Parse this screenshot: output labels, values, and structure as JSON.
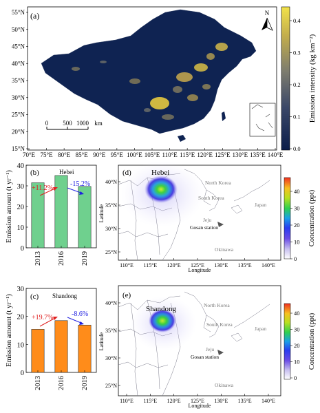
{
  "panel_a": {
    "label": "(a)",
    "lat_ticks": [
      "55°N",
      "50°N",
      "45°N",
      "40°N",
      "35°N",
      "30°N",
      "25°N",
      "20°N",
      "15°N"
    ],
    "lon_ticks": [
      "70°E",
      "75°E",
      "80°E",
      "85°E",
      "90°E",
      "95°E",
      "100°E",
      "105°E",
      "110°E",
      "115°E",
      "120°E",
      "125°E",
      "130°E",
      "135°E",
      "140°E"
    ],
    "scalebar": {
      "values": [
        "0",
        "500",
        "1000"
      ],
      "unit": "km"
    },
    "north_arrow": "N",
    "colorbar": {
      "label": "Emission intensity (kg km⁻²)",
      "ticks": [
        "0.0",
        "0.1",
        "0.2",
        "0.3",
        "0.4"
      ],
      "colors": [
        "#0b1d4a",
        "#3b4868",
        "#7d7c6e",
        "#c3ae4c",
        "#f2e24a"
      ]
    }
  },
  "panel_b": {
    "label": "(b)",
    "region": "Hebei",
    "ylabel": "Emission amount (t yr⁻¹)",
    "yticks": [
      "0",
      "10",
      "20",
      "30",
      "40"
    ],
    "bar_color": "#6fd08e",
    "changes": [
      {
        "text": "+11.2%",
        "color": "#e02020"
      },
      {
        "text": "-15.2%",
        "color": "#2020e0"
      }
    ]
  },
  "panel_c": {
    "label": "(c)",
    "region": "Shandong",
    "ylabel": "Emission amount (t yr⁻¹)",
    "yticks": [
      "0",
      "10",
      "20",
      "30"
    ],
    "bar_color": "#ff8c1a",
    "changes": [
      {
        "text": "+19.7%",
        "color": "#e02020"
      },
      {
        "text": "-8.6%",
        "color": "#2020e0"
      }
    ]
  },
  "panel_d": {
    "label": "(d)",
    "region": "Hebei",
    "places": [
      "North Korea",
      "South Korea",
      "Japan",
      "Jeju",
      "Gosan station",
      "Okinawa"
    ],
    "lat_ticks": [
      "40°N",
      "35°N",
      "30°N",
      "25°N"
    ],
    "lon_ticks": [
      "110°E",
      "115°E",
      "120°E",
      "125°E",
      "130°E",
      "135°E",
      "140°E"
    ],
    "xlabel": "Longitude",
    "ylabel": "Latitude",
    "colorbar": {
      "label": "Concentration (ppt)",
      "ticks": [
        "0",
        "10",
        "20",
        "30",
        "40"
      ]
    }
  },
  "panel_e": {
    "label": "(e)",
    "region": "Shandong",
    "places": [
      "North Korea",
      "South Korea",
      "Japan",
      "Jeju",
      "Gosan station",
      "Okinawa"
    ],
    "lat_ticks": [
      "40°N",
      "35°N",
      "30°N",
      "25°N"
    ],
    "lon_ticks": [
      "110°E",
      "115°E",
      "120°E",
      "125°E",
      "130°E",
      "135°E",
      "140°E"
    ],
    "xlabel": "Longitude",
    "ylabel": "Latitude",
    "colorbar": {
      "label": "Concentration (ppt)",
      "ticks": [
        "0",
        "10",
        "20",
        "30",
        "40"
      ]
    }
  },
  "chart_data": [
    {
      "type": "bar",
      "title": "Hebei",
      "categories": [
        "2013",
        "2016",
        "2019"
      ],
      "values": [
        31.5,
        35.0,
        29.7
      ],
      "ylabel": "Emission amount (t yr⁻¹)",
      "ylim": [
        0,
        40
      ]
    },
    {
      "type": "bar",
      "title": "Shandong",
      "categories": [
        "2013",
        "2016",
        "2019"
      ],
      "values": [
        15.4,
        18.5,
        16.9
      ],
      "ylabel": "Emission amount (t yr⁻¹)",
      "ylim": [
        0,
        30
      ]
    }
  ]
}
